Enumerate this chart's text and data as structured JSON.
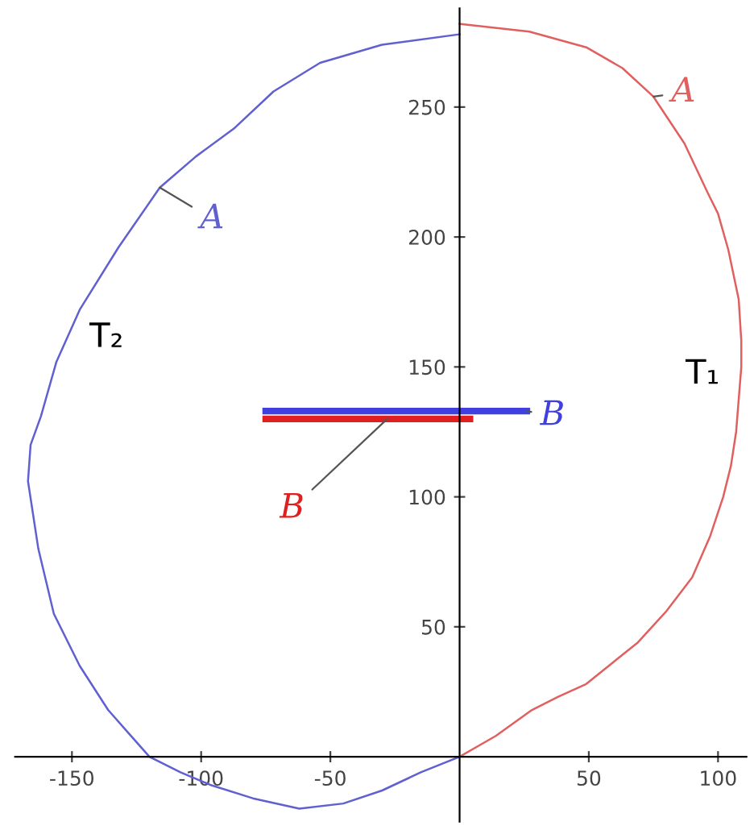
{
  "chart_data": {
    "type": "line",
    "xlim": [
      -172,
      111
    ],
    "ylim": [
      -25,
      288
    ],
    "xticks": [
      -150,
      -100,
      -50,
      50,
      100
    ],
    "yticks": [
      50,
      100,
      150,
      200,
      250
    ],
    "grid": false,
    "legend": false,
    "marker": "none",
    "line_style": "solid",
    "series": [
      {
        "color": "#e06060",
        "x": [
          0,
          14,
          28,
          38,
          49,
          69,
          80,
          90,
          97,
          102,
          105,
          107,
          109,
          109,
          108,
          104,
          100,
          96,
          87,
          75,
          63,
          49,
          27,
          0
        ],
        "values": [
          0,
          8,
          18,
          23,
          28,
          44,
          56,
          69,
          85,
          100,
          112,
          125,
          150,
          160,
          176,
          195,
          209,
          217,
          236,
          254,
          265,
          273,
          279,
          282
        ]
      },
      {
        "color": "#6060d0",
        "x": [
          0,
          -15,
          -30,
          -45,
          -62,
          -80,
          -96,
          -108,
          -120,
          -128,
          -136,
          -147,
          -157,
          -163,
          -167,
          -166,
          -162,
          -156,
          -147,
          -132,
          -116,
          -102,
          -87,
          -72,
          -54,
          -30,
          0
        ],
        "values": [
          0,
          -6,
          -13,
          -18,
          -20,
          -16,
          -11,
          -6,
          0,
          9,
          18,
          35,
          55,
          80,
          106,
          120,
          131,
          152,
          172,
          196,
          219,
          231,
          242,
          256,
          267,
          274,
          278
        ]
      },
      {
        "color": "#4040e0",
        "x": [
          -75,
          26
        ],
        "values": [
          133,
          133
        ]
      },
      {
        "color": "#e02020",
        "x": [
          -75,
          4
        ],
        "values": [
          130,
          130
        ]
      }
    ],
    "annotations": [
      {
        "text": "A",
        "x": 75,
        "y": 254
      },
      {
        "text": "A",
        "x": -116,
        "y": 219
      },
      {
        "text": "B",
        "x": 26,
        "y": 133
      },
      {
        "text": "B",
        "x": -28,
        "y": 130
      },
      "T₁",
      "T₂"
    ]
  }
}
